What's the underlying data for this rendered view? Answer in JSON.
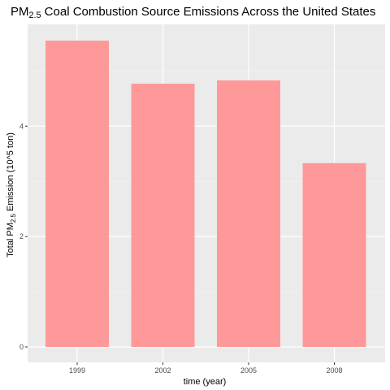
{
  "chart_data": {
    "type": "bar",
    "title": {
      "prefix": "PM",
      "subscript": "2.5",
      "suffix": " Coal Combustion Source Emissions Across the United States"
    },
    "xlabel": "time (year)",
    "ylabel": {
      "prefix": "Total PM",
      "subscript": "2.5",
      "suffix": " Emission (10^5 ton)"
    },
    "categories": [
      "1999",
      "2002",
      "2005",
      "2008"
    ],
    "values": [
      5.55,
      4.77,
      4.83,
      3.33
    ],
    "ylim": [
      0,
      5.8
    ],
    "yticks": [
      0,
      2,
      4
    ],
    "grid": true,
    "legend": "none",
    "colors": {
      "bar": "#ff9999",
      "panel": "#ebebeb",
      "grid_major": "#ffffff",
      "grid_minor": "#f4f4f4"
    }
  }
}
